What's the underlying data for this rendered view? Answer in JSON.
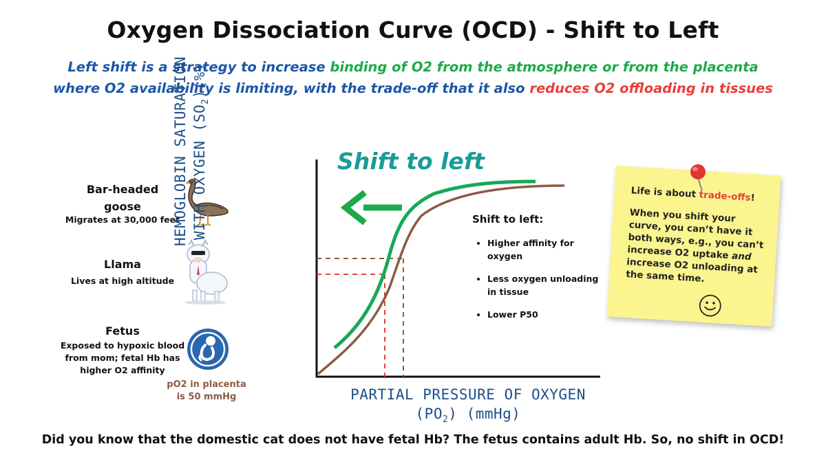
{
  "title": "Oxygen Dissociation Curve (OCD) - Shift to Left",
  "subtitle": {
    "line1_a": "Left shift is a strategy to increase ",
    "line1_b": "binding of O2 from the atmosphere or from the placenta",
    "line2_a": "where O2 availability is limiting, with the trade-off that it also ",
    "line2_b": "reduces O2 offloading in tissues"
  },
  "organisms": [
    {
      "name": "Bar-headed goose",
      "desc": "Migrates at 30,000 feet",
      "icon": "goose-icon"
    },
    {
      "name": "Llama",
      "desc": "Lives at high altitude",
      "icon": "llama-icon"
    },
    {
      "name": "Fetus",
      "desc": "Exposed to hypoxic blood from mom; fetal Hb has higher O2 affinity",
      "icon": "fetus-icon"
    }
  ],
  "placenta_note": "pO2 in placenta is 50 mmHg",
  "chart": {
    "heading": "Shift to left",
    "ylabel_line1": "HEMOGLOBIN SATURATION",
    "ylabel_line2_a": "WITH OXYGEN (SO",
    "ylabel_line2_sub": "2",
    "ylabel_line2_b": ")(%)",
    "xlabel_line1": "PARTIAL PRESSURE OF OXYGEN",
    "xlabel_line2_a": "(PO",
    "xlabel_line2_sub": "2",
    "xlabel_line2_b": ") (mmHg)",
    "colors": {
      "left_shifted": "#19a857",
      "normal": "#8d5a43",
      "arrow": "#1ea84a"
    }
  },
  "points": {
    "title": "Shift to left:",
    "items": [
      "Higher affinity for oxygen",
      "Less oxygen unloading in tissue",
      "Lower P50"
    ]
  },
  "sticky": {
    "line1_a": "Life is about ",
    "line1_b": "trade-offs",
    "line1_c": "!",
    "body_a": "When you shift your curve, you can’t have it both ways, e.g., you can’t increase O2 uptake ",
    "body_and": "and",
    "body_b": " increase O2 unloading at the same time.",
    "icon": "smiley-icon"
  },
  "footer": "Did you know that the domestic cat does not have fetal Hb? The fetus contains adult Hb. So, no shift in OCD!"
}
